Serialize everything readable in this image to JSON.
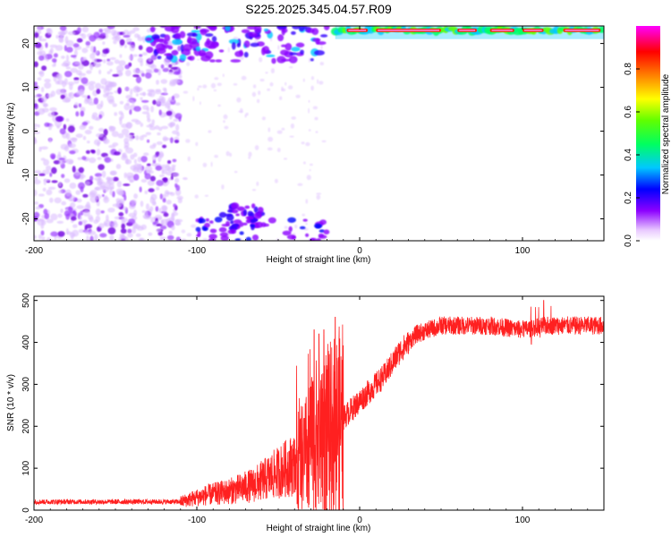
{
  "title": "S225.2025.345.04.57.R09",
  "chart_data": [
    {
      "type": "heatmap",
      "xlabel": "Height of straight line (km)",
      "ylabel": "Frequency (Hz)",
      "xlim": [
        -200,
        150
      ],
      "ylim": [
        -25,
        24
      ],
      "xticks": [
        -200,
        -100,
        0,
        100
      ],
      "yticks": [
        -20,
        -10,
        0,
        10,
        20
      ],
      "colorbar": {
        "label": "Normalized spectral amplitude",
        "range": [
          0,
          1
        ],
        "ticks": [
          "0.0",
          "0.2",
          "0.4",
          "0.6",
          "0.8"
        ],
        "tick_values": [
          0,
          0.2,
          0.4,
          0.6,
          0.8
        ],
        "colors": [
          "#ffffff",
          "#8c00ff",
          "#0000ff",
          "#00c8ff",
          "#00ff00",
          "#ffff00",
          "#ff8000",
          "#ff0000",
          "#ff00ff"
        ]
      },
      "features": [
        {
          "desc": "scattered purple speckles",
          "x": [
            -200,
            -110
          ],
          "y": [
            -25,
            24
          ],
          "level": 0.1
        },
        {
          "desc": "blue-cyan blobs near top",
          "x": [
            -130,
            -20
          ],
          "y": [
            16,
            24
          ],
          "level": 0.3
        },
        {
          "desc": "blob cluster near bottom",
          "x": [
            -85,
            -60
          ],
          "y": [
            -23,
            -17
          ],
          "level": 0.25
        },
        {
          "desc": "intense red/green band at top",
          "x": [
            -15,
            150
          ],
          "y": [
            21,
            24
          ],
          "level": 0.9
        }
      ]
    },
    {
      "type": "line",
      "xlabel": "Height of straight line (km)",
      "ylabel": "SNR (10 * v/v)",
      "xlim": [
        -200,
        150
      ],
      "ylim": [
        0,
        510
      ],
      "xticks": [
        -200,
        -100,
        0,
        100
      ],
      "yticks": [
        0,
        100,
        200,
        300,
        400,
        500
      ],
      "color": "#ff2020",
      "key_points": [
        {
          "x": -200,
          "y": 20
        },
        {
          "x": -110,
          "y": 20
        },
        {
          "x": -95,
          "y": 35
        },
        {
          "x": -80,
          "y": 45
        },
        {
          "x": -65,
          "y": 60
        },
        {
          "x": -50,
          "y": 90
        },
        {
          "x": -35,
          "y": 120
        },
        {
          "x": -25,
          "y": 180
        },
        {
          "x": -15,
          "y": 200
        },
        {
          "x": -5,
          "y": 240
        },
        {
          "x": 5,
          "y": 280
        },
        {
          "x": 15,
          "y": 320
        },
        {
          "x": 25,
          "y": 380
        },
        {
          "x": 35,
          "y": 420
        },
        {
          "x": 50,
          "y": 440
        },
        {
          "x": 80,
          "y": 440
        },
        {
          "x": 100,
          "y": 430
        },
        {
          "x": 115,
          "y": 440
        },
        {
          "x": 150,
          "y": 440
        }
      ],
      "spikes": [
        {
          "x": -28,
          "y": 430
        },
        {
          "x": -25,
          "y": 420
        },
        {
          "x": -22,
          "y": 430
        },
        {
          "x": -15,
          "y": 460
        },
        {
          "x": 113,
          "y": 500
        }
      ]
    }
  ]
}
